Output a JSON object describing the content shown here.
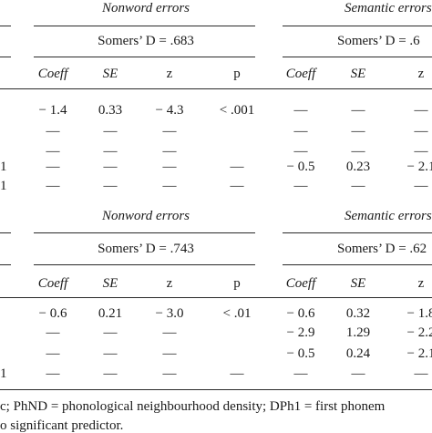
{
  "table1": {
    "group_a": {
      "title": "Nonword errors",
      "somers": "Somers’ D = .683",
      "headers": [
        "Coeff",
        "SE",
        "z",
        "p"
      ],
      "rows": [
        [
          "− 1.4",
          "0.33",
          "− 4.3",
          "< .001"
        ],
        [
          "—",
          "—",
          "—",
          ""
        ],
        [
          "—",
          "—",
          "—",
          ""
        ],
        [
          "—",
          "—",
          "—",
          "—"
        ],
        [
          "—",
          "—",
          "—",
          "—"
        ]
      ]
    },
    "group_b": {
      "title": "Semantic errors",
      "somers": "Somers’ D = .6",
      "headers": [
        "Coeff",
        "SE",
        "z"
      ],
      "rows": [
        [
          "—",
          "—",
          "—"
        ],
        [
          "—",
          "—",
          "—"
        ],
        [
          "—",
          "—",
          "—"
        ],
        [
          "− 0.5",
          "0.23",
          "− 2.1"
        ],
        [
          "—",
          "—",
          "—"
        ]
      ]
    },
    "row_stubs": [
      "",
      "",
      "",
      "1",
      "1"
    ]
  },
  "table2": {
    "group_a": {
      "title": "Nonword errors",
      "somers": "Somers’ D = .743",
      "headers": [
        "Coeff",
        "SE",
        "z",
        "p"
      ],
      "rows": [
        [
          "− 0.6",
          "0.21",
          "− 3.0",
          "< .01"
        ],
        [
          "—",
          "—",
          "—",
          ""
        ],
        [
          "—",
          "—",
          "—",
          ""
        ],
        [
          "—",
          "—",
          "—",
          "—"
        ]
      ]
    },
    "group_b": {
      "title": "Semantic errors",
      "somers": "Somers’ D = .62",
      "headers": [
        "Coeff",
        "SE",
        "z"
      ],
      "rows": [
        [
          "− 0.6",
          "0.32",
          "− 1.8"
        ],
        [
          "− 2.9",
          "1.29",
          "− 2.2"
        ],
        [
          "− 0.5",
          "0.24",
          "− 2.1"
        ],
        [
          "—",
          "—",
          "—"
        ]
      ]
    },
    "row_stubs": [
      "",
      "",
      "",
      "1"
    ]
  },
  "footnote": {
    "line1": "c; PhND = phonological neighbourhood density; DPh1 = first phonem",
    "line2": "o significant predictor."
  }
}
